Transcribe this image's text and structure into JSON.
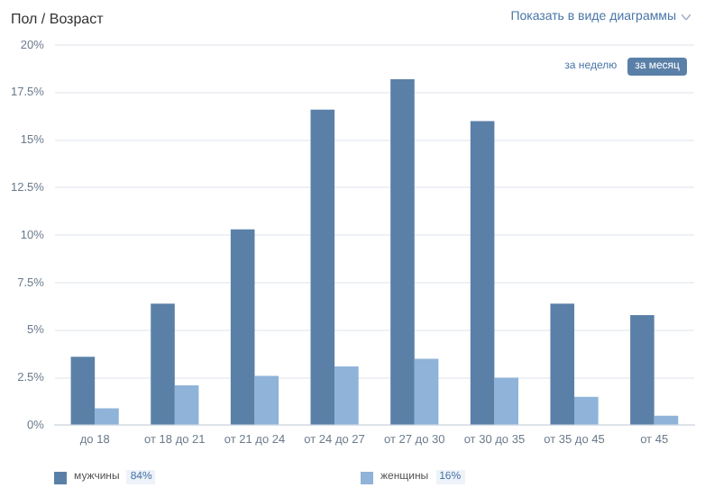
{
  "chart_data": {
    "type": "bar",
    "title": "Пол / Возраст",
    "categories": [
      "до 18",
      "от 18 до 21",
      "от 21 до 24",
      "от 24 до 27",
      "от 27 до 30",
      "от 30 до 35",
      "от 35 до 45",
      "от 45"
    ],
    "series": [
      {
        "name": "мужчины",
        "color": "#5b80a8",
        "values": [
          3.6,
          6.4,
          10.3,
          16.6,
          18.2,
          16.0,
          6.4,
          5.8
        ]
      },
      {
        "name": "женщины",
        "color": "#8fb3d9",
        "values": [
          0.9,
          2.1,
          2.6,
          3.1,
          3.5,
          2.5,
          1.5,
          0.5
        ]
      }
    ],
    "ylim": [
      0,
      20
    ],
    "yticks": [
      {
        "value": 0,
        "label": "0%"
      },
      {
        "value": 2.5,
        "label": "2.5%"
      },
      {
        "value": 5,
        "label": "5%"
      },
      {
        "value": 7.5,
        "label": "7.5%"
      },
      {
        "value": 10,
        "label": "10%"
      },
      {
        "value": 12.5,
        "label": "12.5%"
      },
      {
        "value": 15,
        "label": "15%"
      },
      {
        "value": 17.5,
        "label": "17.5%"
      },
      {
        "value": 20,
        "label": "20%"
      }
    ],
    "grid": "y",
    "legend": "bottom",
    "annotations": [
      "Показать в виде диаграммы",
      "за неделю",
      "за месяц",
      "84%",
      "16%"
    ]
  }
}
